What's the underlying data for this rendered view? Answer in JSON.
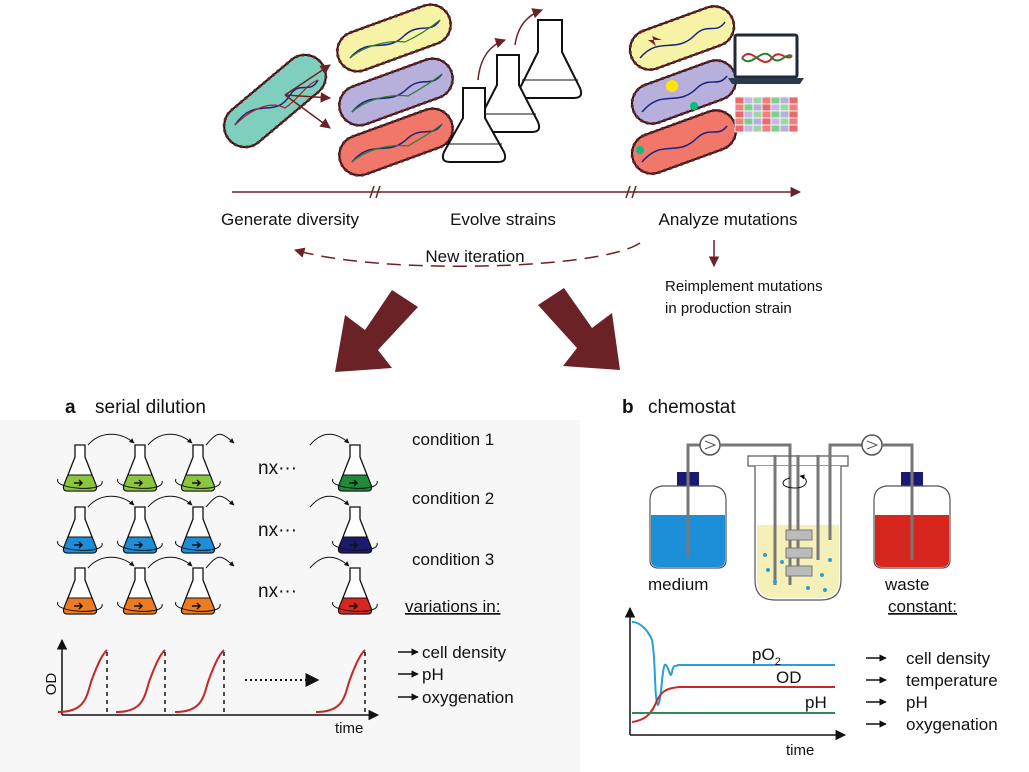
{
  "pipeline": {
    "steps": [
      "Generate diversity",
      "Evolve strains",
      "Analyze mutations"
    ],
    "iteration_label": "New iteration",
    "reimplement_line1": "Reimplement mutations",
    "reimplement_line2": "in production strain"
  },
  "panel_a": {
    "letter": "a",
    "title": "serial dilution",
    "conditions": [
      "condition 1",
      "condition 2",
      "condition 3"
    ],
    "repeat_label": "nx···",
    "variations_heading": "variations in:",
    "variations": [
      "cell density",
      "pH",
      "oxygenation"
    ],
    "y_axis": "OD",
    "x_axis": "time"
  },
  "panel_b": {
    "letter": "b",
    "title": "chemostat",
    "medium_label": "medium",
    "waste_label": "waste",
    "constant_heading": "constant:",
    "constants": [
      "cell density",
      "temperature",
      "pH",
      "oxygenation"
    ],
    "po2_label": "pO",
    "po2_sub": "2",
    "od_label": "OD",
    "ph_label": "pH",
    "x_axis": "time"
  },
  "colors": {
    "arrow_dark_red": "#6b2226",
    "flask_green": "#8cc63f",
    "flask_dark_green": "#1e8a3a",
    "flask_blue": "#1d8fd8",
    "flask_navy": "#1c1a6e",
    "flask_orange": "#ee7b1f",
    "flask_red": "#d7261e",
    "curve_red": "#c62828",
    "po2_blue": "#2a9fd6",
    "ph_green": "#2e8b57",
    "bacterium_teal": "#7fcfbf",
    "bacterium_yellow": "#f7f3a6",
    "bacterium_purple": "#b7b0dc",
    "bacterium_salmon": "#f0776a"
  }
}
